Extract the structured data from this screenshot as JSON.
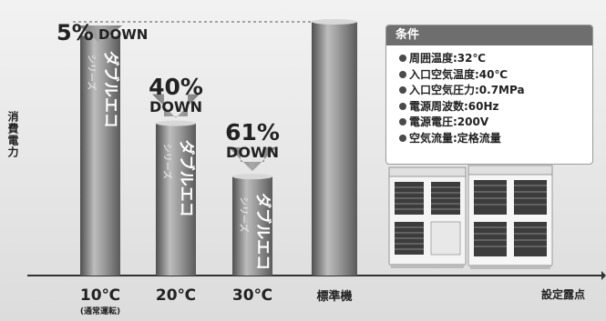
{
  "chart_data": {
    "type": "bar",
    "title": "",
    "xlabel": "設定露点",
    "ylabel": "消費電力",
    "categories": [
      "10℃",
      "20℃",
      "30℃",
      "標準機"
    ],
    "category_notes": [
      "(通常運転)",
      "",
      "",
      ""
    ],
    "values": [
      95,
      60,
      39,
      100
    ],
    "ylim": [
      0,
      105
    ],
    "series_labels": [
      "ダブルエコ",
      "ダブルエコ",
      "ダブルエコ",
      ""
    ],
    "series_sublabels": [
      "シリーズ",
      "シリーズ",
      "シリーズ",
      ""
    ],
    "reductions": [
      {
        "value": "5%",
        "suffix": "DOWN"
      },
      {
        "value": "40%",
        "suffix": "DOWN"
      },
      {
        "value": "61%",
        "suffix": "DOWN"
      },
      null
    ],
    "grid": false,
    "reference_line": "dashed at 標準機 level"
  },
  "conditions": {
    "title": "条件",
    "items": [
      "周囲温度:32℃",
      "入口空気温度:40℃",
      "入口空気圧力:0.7MPa",
      "電源周波数:60Hz",
      "電源電圧:200V",
      "空気流量:定格流量"
    ]
  },
  "colors": {
    "bar_dark": "#5f5f5f",
    "bar_light": "#b5b5b5",
    "arrow": "#8a8a8a",
    "panel_header": "#6e6e6e",
    "text": "#222222"
  }
}
